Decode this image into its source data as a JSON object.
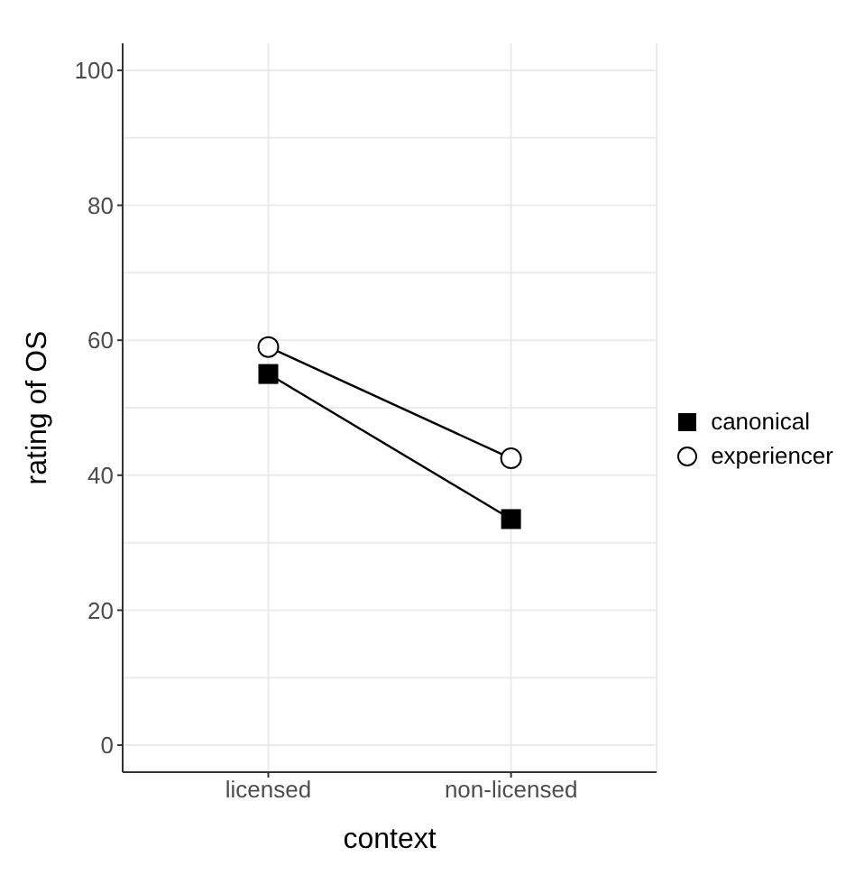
{
  "chart_data": {
    "type": "line",
    "xlabel": "context",
    "ylabel": "rating of OS",
    "categories": [
      "licensed",
      "non-licensed"
    ],
    "series": [
      {
        "name": "canonical",
        "color": "#000000",
        "marker": "square",
        "values": [
          55,
          33.5
        ]
      },
      {
        "name": "experiencer",
        "color": "#000000",
        "marker": "circle",
        "values": [
          59,
          42.5
        ]
      }
    ],
    "ylim": [
      -4,
      104
    ],
    "yticks": [
      0,
      20,
      40,
      60,
      80,
      100
    ],
    "grid": true,
    "legend": "right"
  }
}
